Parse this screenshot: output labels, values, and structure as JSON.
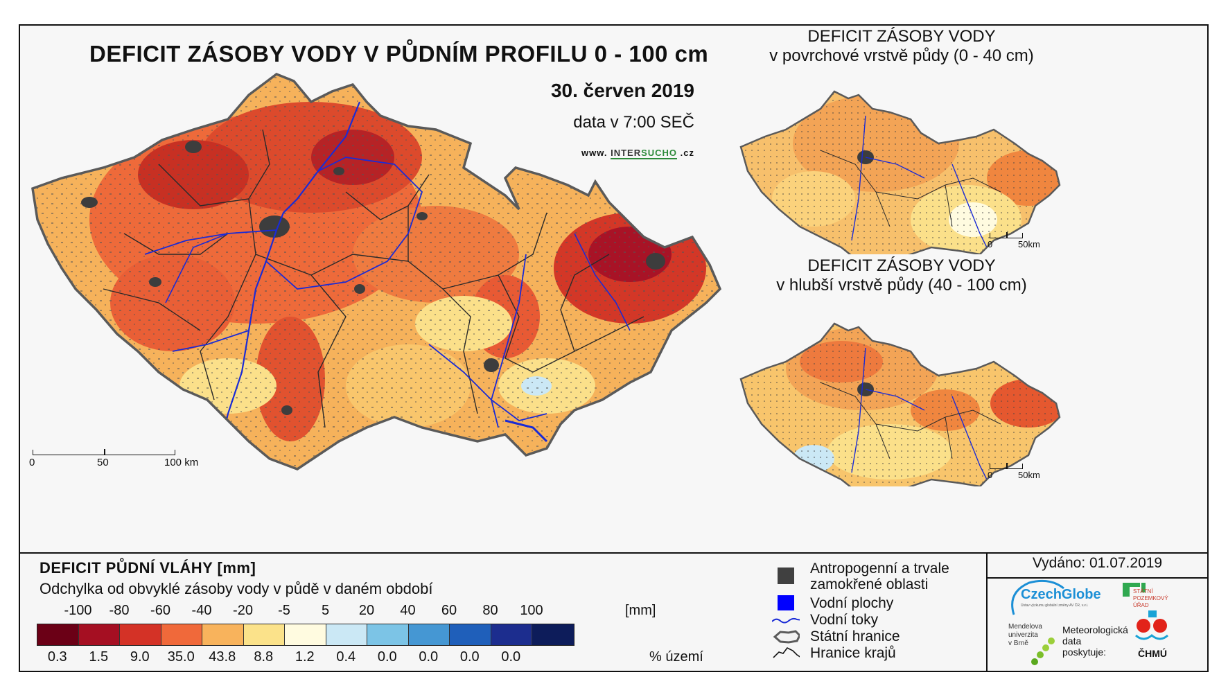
{
  "map": {
    "title": "DEFICIT ZÁSOBY VODY V PŮDNÍM PROFILU 0 - 100 cm",
    "date": "30. červen 2019",
    "data_time": "data v 7:00 SEČ",
    "website_prefix": "www.",
    "website_brand_a": "INTER",
    "website_brand_b": "SUCHO",
    "website_suffix": ".cz",
    "scale_labels": [
      "0",
      "50",
      "100 km"
    ]
  },
  "inset_top": {
    "title_line1": "DEFICIT ZÁSOBY VODY",
    "title_line2": "v povrchové vrstvě půdy (0 - 40 cm)",
    "scale_labels": [
      "0",
      "50km"
    ]
  },
  "inset_bottom": {
    "title_line1": "DEFICIT ZÁSOBY VODY",
    "title_line2": "v hlubší vrstvě půdy (40 - 100 cm)",
    "scale_labels": [
      "0",
      "50km"
    ]
  },
  "legend": {
    "title": "DEFICIT PŮDNÍ VLÁHY [mm]",
    "subtitle": "Odchylka od obvyklé zásoby vody v půdě v daném období",
    "unit": "[mm]",
    "ticks": [
      "-100",
      "-80",
      "-60",
      "-40",
      "-20",
      "-5",
      "5",
      "20",
      "40",
      "60",
      "80",
      "100"
    ],
    "colors": [
      "#6b0016",
      "#a50f22",
      "#d43226",
      "#f0693a",
      "#f8b35c",
      "#fbe28a",
      "#fffbe0",
      "#cbe8f5",
      "#7cc4e6",
      "#4597d3",
      "#1f5fba",
      "#1c2d8e",
      "#0d1c5a"
    ],
    "percentages": [
      "0.3",
      "1.5",
      "9.0",
      "35.0",
      "43.8",
      "8.8",
      "1.2",
      "0.4",
      "0.0",
      "0.0",
      "0.0",
      "0.0"
    ],
    "percent_label": "% území"
  },
  "symbols": {
    "anthropogenic_line1": "Antropogenní a trvale",
    "anthropogenic_line2": "zamokřené oblasti",
    "water_bodies": "Vodní plochy",
    "rivers": "Vodní toky",
    "state_border": "Státní hranice",
    "region_border": "Hranice krajů",
    "colors": {
      "anthropogenic": "#404040",
      "water": "#0000ff",
      "river": "#1a2bd6"
    }
  },
  "issued": "Vydáno: 01.07.2019",
  "logos": {
    "czechglobe": "CzechGlobe",
    "czechglobe_sub": "Ústav výzkumu globální změny AV ČR, v.v.i.",
    "spu_line1": "STÁTNÍ",
    "spu_line2": "POZEMKOVÝ",
    "spu_line3": "ÚŘAD",
    "mendel_line1": "Mendelova",
    "mendel_line2": "univerzita",
    "mendel_line3": "v Brně",
    "meteo_line1": "Meteorologická",
    "meteo_line2": "data",
    "meteo_line3": "poskytuje:",
    "chmu": "ČHMÚ"
  }
}
